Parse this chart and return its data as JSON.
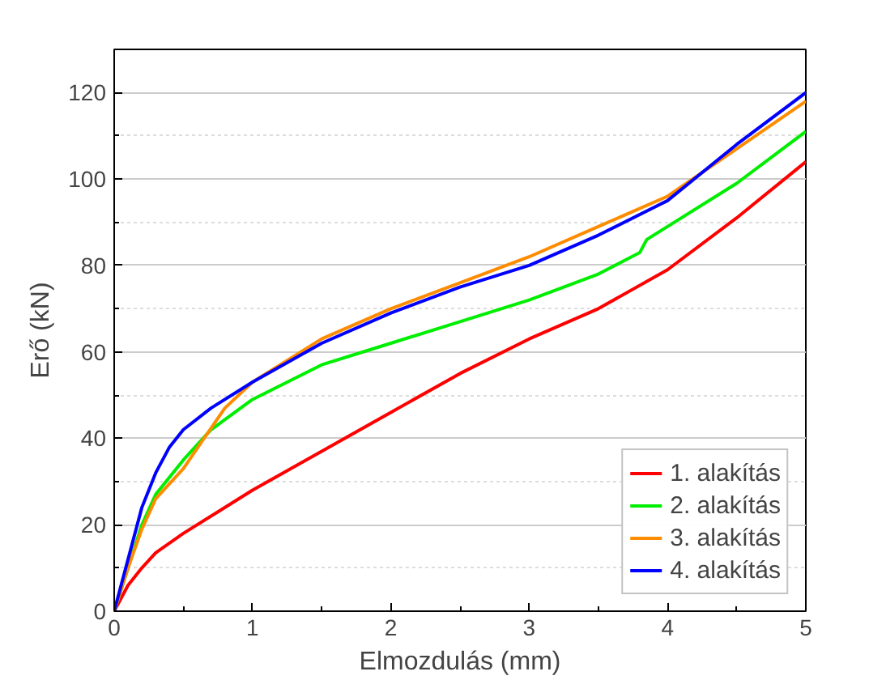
{
  "chart_data": {
    "type": "line",
    "xlabel": "Elmozdulás (mm)",
    "ylabel": "Erő (kN)",
    "xlim": [
      0,
      5
    ],
    "ylim": [
      0,
      130
    ],
    "xticks": [
      0,
      1,
      2,
      3,
      4,
      5
    ],
    "yticks": [
      0,
      20,
      40,
      60,
      80,
      100,
      120
    ],
    "grid": "y",
    "legend": "bottom right",
    "marker": "none",
    "line_style": "solid",
    "series": [
      {
        "name": "1. alakítás",
        "color": "#ff0000",
        "x": [
          0,
          0.1,
          0.2,
          0.3,
          0.5,
          0.75,
          1,
          1.5,
          2,
          2.5,
          3,
          3.5,
          4,
          4.5,
          5
        ],
        "values": [
          0,
          6,
          10,
          13.5,
          18,
          23,
          28,
          37,
          46,
          55,
          63,
          70,
          79,
          91,
          104
        ]
      },
      {
        "name": "2. alakítás",
        "color": "#00ee00",
        "x": [
          0,
          0.2,
          0.3,
          0.5,
          0.7,
          1,
          1.5,
          2,
          2.5,
          3,
          3.5,
          3.8,
          3.85,
          4,
          4.5,
          5
        ],
        "values": [
          0,
          20,
          27,
          35,
          42,
          49,
          57,
          62,
          67,
          72,
          78,
          83,
          86,
          89,
          99,
          111
        ]
      },
      {
        "name": "3. alakítás",
        "color": "#ff8c00",
        "x": [
          0,
          0.1,
          0.2,
          0.3,
          0.5,
          0.65,
          0.8,
          1,
          1.5,
          2,
          2.5,
          3,
          3.5,
          4,
          4.5,
          5
        ],
        "values": [
          0,
          10,
          19,
          26,
          33,
          40,
          47,
          53,
          63,
          70,
          76,
          82,
          89,
          96,
          107,
          118
        ]
      },
      {
        "name": "4. alakítás",
        "color": "#0000ff",
        "x": [
          0,
          0.1,
          0.2,
          0.3,
          0.4,
          0.5,
          0.7,
          1,
          1.5,
          2,
          2.5,
          3,
          3.5,
          4,
          4.5,
          5
        ],
        "values": [
          0,
          12,
          24,
          32,
          38,
          42,
          47,
          53,
          62,
          69,
          75,
          80,
          87,
          95,
          108,
          120
        ]
      }
    ]
  }
}
